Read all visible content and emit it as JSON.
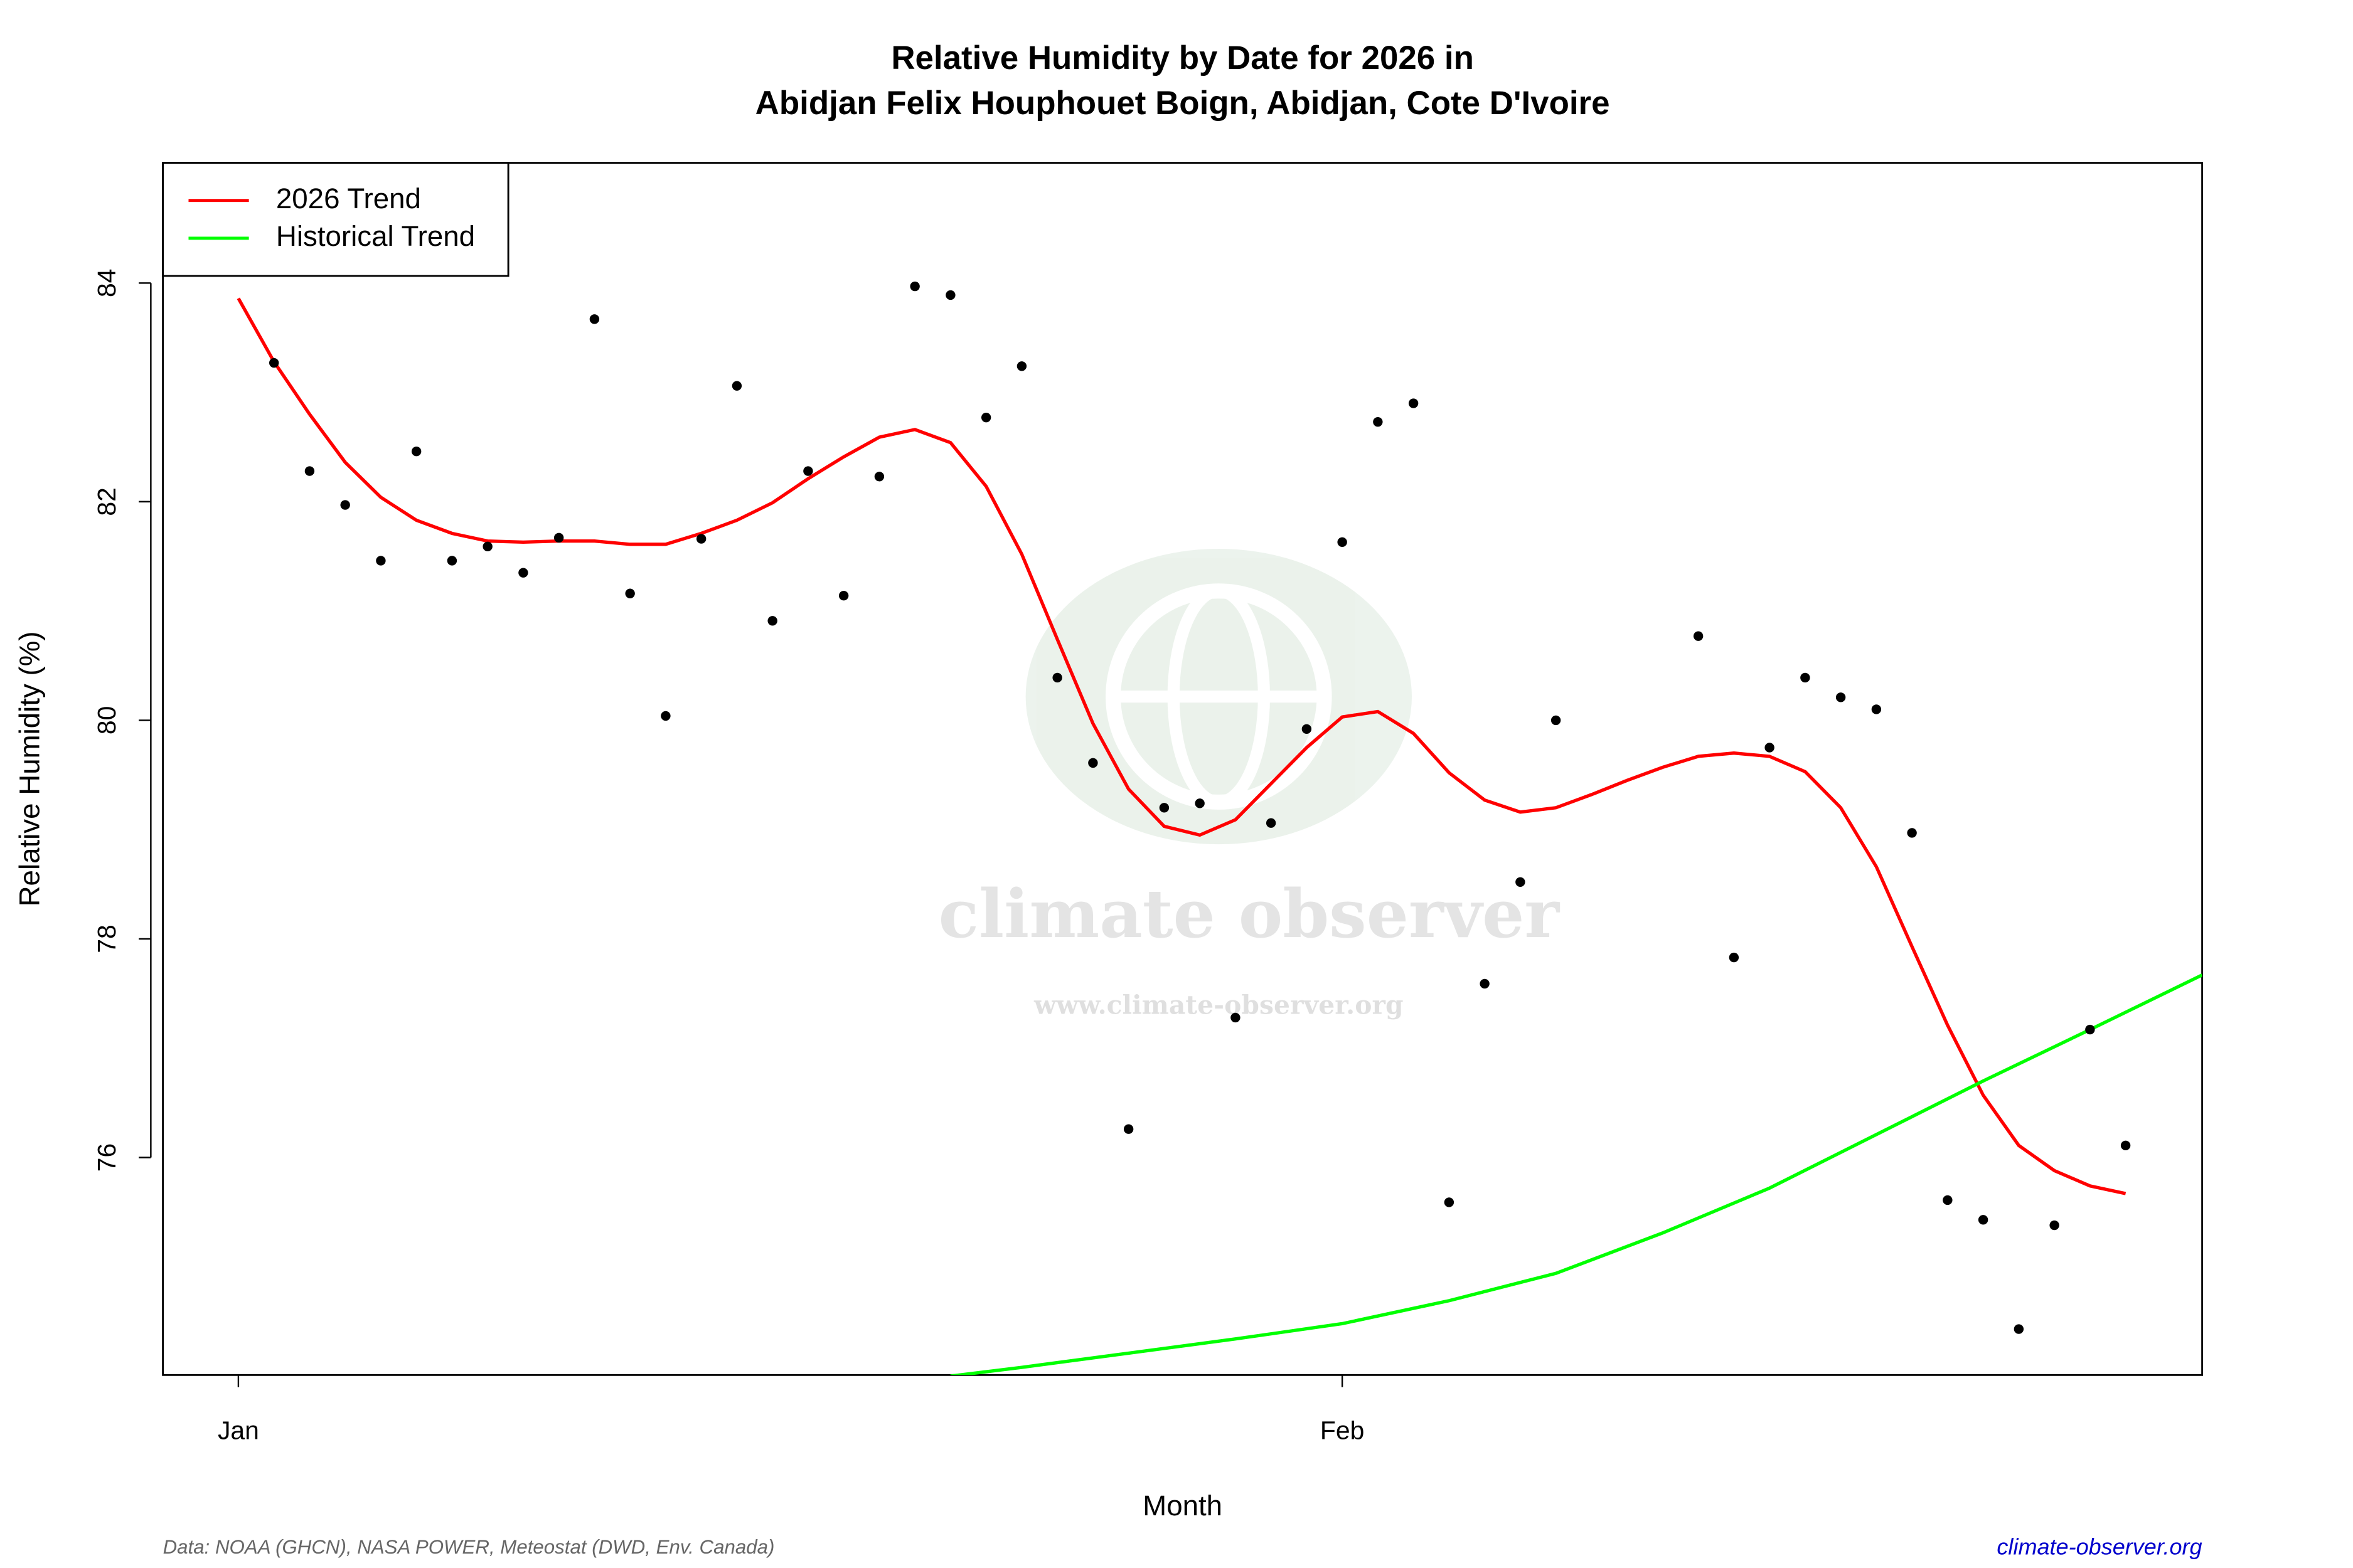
{
  "chart_data": {
    "type": "scatter",
    "title": "Relative Humidity by Date for 2026 in",
    "subtitle": "Abidjan Felix Houphouet Boign, Abidjan, Cote D'Ivoire",
    "x_label": "Month",
    "y_label": "Relative Humidity (%)",
    "source": "Data: NOAA (GHCN), NASA POWER, Meteostat (DWD, Env. Canada)",
    "site": "climate-observer.org",
    "watermark": "climate observer",
    "watermark_url": "www.climate-observer.org",
    "legend": "top-left",
    "xlim": [
      -2.12,
      55.15
    ],
    "ylim": [
      74.01,
      85.1
    ],
    "xticks": [
      {
        "value": 0,
        "label": "Jan"
      },
      {
        "value": 31,
        "label": "Feb"
      }
    ],
    "yticks": [
      76,
      78,
      80,
      82,
      84
    ],
    "points": {
      "color": "#000000",
      "x": [
        1,
        2,
        3,
        4,
        5,
        6,
        7,
        8,
        9,
        10,
        11,
        12,
        13,
        14,
        15,
        16,
        17,
        18,
        19,
        20,
        21,
        22,
        23,
        24,
        25,
        26,
        27,
        28,
        29,
        30,
        31,
        32,
        33,
        34,
        35,
        36,
        37,
        41,
        42,
        43,
        44,
        45,
        46,
        47,
        48,
        49,
        50,
        51,
        52,
        53
      ],
      "values": [
        83.27,
        82.28,
        81.97,
        81.46,
        82.46,
        81.46,
        81.59,
        81.35,
        81.67,
        83.67,
        81.16,
        80.04,
        81.66,
        83.06,
        80.91,
        82.28,
        81.14,
        82.23,
        83.97,
        83.89,
        82.77,
        83.24,
        80.39,
        79.61,
        76.26,
        79.2,
        79.24,
        77.28,
        79.06,
        79.92,
        81.63,
        82.73,
        82.9,
        75.59,
        77.59,
        78.52,
        80.0,
        80.77,
        77.83,
        79.75,
        80.39,
        80.21,
        80.1,
        78.97,
        75.61,
        75.43,
        74.43,
        75.38,
        77.17,
        76.11
      ]
    },
    "series": [
      {
        "name": "2026 Trend",
        "color": "#ff0000",
        "x": [
          0,
          1,
          2,
          3,
          4,
          5,
          6,
          7,
          8,
          9,
          10,
          11,
          12,
          13,
          14,
          15,
          16,
          17,
          18,
          19,
          20,
          21,
          22,
          23,
          24,
          25,
          26,
          27,
          28,
          29,
          30,
          31,
          32,
          33,
          34,
          35,
          36,
          37,
          38,
          39,
          40,
          41,
          42,
          43,
          44,
          45,
          46,
          47,
          48,
          49,
          50,
          51,
          52,
          53
        ],
        "values": [
          83.86,
          83.28,
          82.8,
          82.36,
          82.04,
          81.83,
          81.71,
          81.64,
          81.63,
          81.64,
          81.64,
          81.61,
          81.61,
          81.71,
          81.83,
          81.99,
          82.21,
          82.41,
          82.59,
          82.66,
          82.54,
          82.14,
          81.52,
          80.74,
          79.97,
          79.37,
          79.03,
          78.95,
          79.09,
          79.42,
          79.75,
          80.03,
          80.08,
          79.88,
          79.52,
          79.27,
          79.16,
          79.2,
          79.32,
          79.45,
          79.57,
          79.67,
          79.7,
          79.67,
          79.53,
          79.2,
          78.66,
          77.93,
          77.21,
          76.57,
          76.11,
          75.88,
          75.74,
          75.67
        ]
      },
      {
        "name": "Historical Trend",
        "color": "#00ff00",
        "x": [
          20,
          22,
          25,
          28,
          31,
          34,
          37,
          40,
          43,
          46,
          49,
          52,
          55.15
        ],
        "values": [
          74.0,
          74.08,
          74.21,
          74.34,
          74.48,
          74.69,
          74.94,
          75.31,
          75.72,
          76.21,
          76.7,
          77.17,
          77.67
        ]
      }
    ]
  }
}
